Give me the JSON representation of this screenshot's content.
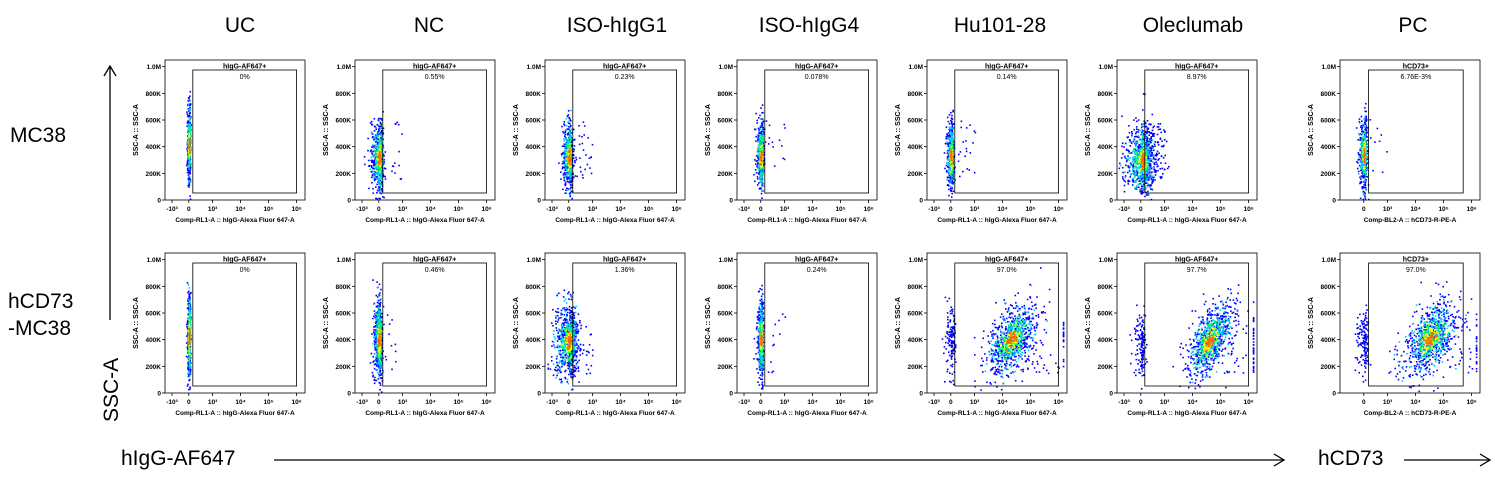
{
  "columns": [
    "UC",
    "NC",
    "ISO-hIgG1",
    "ISO-hIgG4",
    "Hu101-28",
    "Oleclumab",
    "PC"
  ],
  "rows": [
    {
      "label": "MC38"
    },
    {
      "label": "hCD73\n-MC38"
    }
  ],
  "y_axis_label": "SSC-A",
  "x_axis_label_main": "hIgG-AF647",
  "x_axis_label_pc": "hCD73",
  "chart_data": {
    "type": "scatter",
    "plot_kind": "flow-cytometry density dot plot",
    "y_title": "SSC-A :: SSC-A",
    "y_ticks": [
      "0",
      "200K",
      "400K",
      "600K",
      "800K",
      "1.0M"
    ],
    "y_tick_values": [
      0,
      200000,
      400000,
      600000,
      800000,
      1000000
    ],
    "ylim": [
      0,
      1050000
    ],
    "x_scale": "biexponential",
    "x_ticks_main": [
      "-10³",
      "0",
      "10³",
      "10⁴",
      "10⁵",
      "10⁶"
    ],
    "x_ticks_pc": [
      "0",
      "10³",
      "10⁴",
      "10⁵",
      "10⁶"
    ],
    "x_title_main": "Comp-RL1-A :: hIgG-Alexa Fluor   647-A",
    "x_title_pc": "Comp-BL2-A :: hCD73-R-PE-A",
    "density_colors": [
      "#0000ff",
      "#00c8ff",
      "#00ff64",
      "#ffff00",
      "#ff6400"
    ],
    "panels": [
      {
        "row": "MC38",
        "column": "UC",
        "gate": "hIgG-AF647+",
        "percent": "0%",
        "gate_x_log": [
          0.5,
          6
        ]
      },
      {
        "row": "MC38",
        "column": "NC",
        "gate": "hIgG-AF647+",
        "percent": "0.55%",
        "gate_x_log": [
          0.5,
          6
        ]
      },
      {
        "row": "MC38",
        "column": "ISO-hIgG1",
        "gate": "hIgG-AF647+",
        "percent": "0.23%",
        "gate_x_log": [
          0.5,
          6
        ]
      },
      {
        "row": "MC38",
        "column": "ISO-hIgG4",
        "gate": "hIgG-AF647+",
        "percent": "0.078%",
        "gate_x_log": [
          0.5,
          6
        ]
      },
      {
        "row": "MC38",
        "column": "Hu101-28",
        "gate": "hIgG-AF647+",
        "percent": "0.14%",
        "gate_x_log": [
          0.5,
          6
        ]
      },
      {
        "row": "MC38",
        "column": "Oleclumab",
        "gate": "hIgG-AF647+",
        "percent": "8.97%",
        "gate_x_log": [
          0.5,
          6
        ]
      },
      {
        "row": "MC38",
        "column": "PC",
        "gate": "hCD73+",
        "percent": "6.76E-3%",
        "gate_x_log": [
          0.6,
          5.7
        ]
      },
      {
        "row": "hCD73-MC38",
        "column": "UC",
        "gate": "hIgG-AF647+",
        "percent": "0%",
        "gate_x_log": [
          0.5,
          6
        ]
      },
      {
        "row": "hCD73-MC38",
        "column": "NC",
        "gate": "hIgG-AF647+",
        "percent": "0.46%",
        "gate_x_log": [
          0.5,
          6
        ]
      },
      {
        "row": "hCD73-MC38",
        "column": "ISO-hIgG1",
        "gate": "hIgG-AF647+",
        "percent": "1.36%",
        "gate_x_log": [
          0.5,
          6
        ]
      },
      {
        "row": "hCD73-MC38",
        "column": "ISO-hIgG4",
        "gate": "hIgG-AF647+",
        "percent": "0.24%",
        "gate_x_log": [
          0.5,
          6
        ]
      },
      {
        "row": "hCD73-MC38",
        "column": "Hu101-28",
        "gate": "hIgG-AF647+",
        "percent": "97.0%",
        "gate_x_log": [
          0.5,
          6
        ]
      },
      {
        "row": "hCD73-MC38",
        "column": "Oleclumab",
        "gate": "hIgG-AF647+",
        "percent": "97.7%",
        "gate_x_log": [
          0.5,
          6
        ]
      },
      {
        "row": "hCD73-MC38",
        "column": "PC",
        "gate": "hCD73+",
        "percent": "97.0%",
        "gate_x_log": [
          0.6,
          5.7
        ]
      }
    ]
  }
}
